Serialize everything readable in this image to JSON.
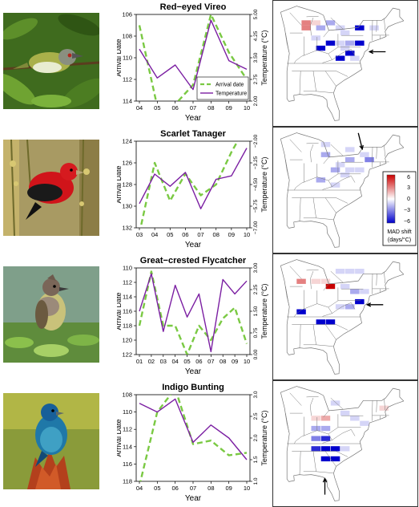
{
  "colors": {
    "arrival": "#7ac943",
    "temperature": "#7b1fa2",
    "shift_positive": "#d7191c",
    "shift_negative": "#0000cc",
    "map_line": "#777777"
  },
  "legend": {
    "arrival_label": "Arrival date",
    "temperature_label": "Temperature"
  },
  "color_scale": {
    "ticks": [
      "6",
      "3",
      "0",
      "−3",
      "−6"
    ],
    "label_line1": "MAD shift",
    "label_line2": "(days/°C)"
  },
  "chart_data": [
    {
      "type": "line",
      "title": "Red−eyed Vireo",
      "xlabel": "Year",
      "ylabel": "Arrival Date",
      "y2label": "Temperature (°C)",
      "x": [
        "04",
        "05",
        "06",
        "07",
        "08",
        "09",
        "10"
      ],
      "ylim": [
        106,
        114
      ],
      "y_reversed": true,
      "y_ticks": [
        "106",
        "108",
        "110",
        "112",
        "114"
      ],
      "y2lim": [
        2.0,
        5.0
      ],
      "y2_ticks": [
        "2.00",
        "2.75",
        "3.50",
        "4.25",
        "5.00"
      ],
      "legend_placement": "bottom-right",
      "series": [
        {
          "name": "Arrival date",
          "axis": "left",
          "style": "dashed",
          "values": [
            107.0,
            114.5,
            114.3,
            112.5,
            106.0,
            109.5,
            112.0
          ]
        },
        {
          "name": "Temperature",
          "axis": "right",
          "style": "solid",
          "values": [
            3.8,
            2.8,
            3.25,
            2.4,
            4.8,
            3.4,
            3.1
          ]
        }
      ],
      "map_cells": [
        {
          "lon": -88,
          "lat": 44,
          "shift": 3
        },
        {
          "lon": -88,
          "lat": 43,
          "shift": 3
        },
        {
          "lon": -86,
          "lat": 44,
          "shift": 1
        },
        {
          "lon": -85,
          "lat": 43,
          "shift": -2
        },
        {
          "lon": -83,
          "lat": 44,
          "shift": -2
        },
        {
          "lon": -81,
          "lat": 43,
          "shift": -1
        },
        {
          "lon": -80,
          "lat": 42,
          "shift": -1
        },
        {
          "lon": -77,
          "lat": 43,
          "shift": -6
        },
        {
          "lon": -74,
          "lat": 43,
          "shift": -1
        },
        {
          "lon": -86,
          "lat": 41,
          "shift": -1
        },
        {
          "lon": -83,
          "lat": 40,
          "shift": -6
        },
        {
          "lon": -81,
          "lat": 40,
          "shift": -1
        },
        {
          "lon": -79,
          "lat": 40,
          "shift": -2
        },
        {
          "lon": -77,
          "lat": 40,
          "shift": -6
        },
        {
          "lon": -85,
          "lat": 39,
          "shift": -6
        },
        {
          "lon": -80,
          "lat": 39,
          "shift": -1
        },
        {
          "lon": -79,
          "lat": 38,
          "shift": -6
        },
        {
          "lon": -78,
          "lat": 37,
          "shift": -1
        },
        {
          "lon": -81,
          "lat": 37,
          "shift": -6
        }
      ],
      "arrow": {
        "lon": -74,
        "lat": 38.8,
        "direction": "left"
      }
    },
    {
      "type": "line",
      "title": "Scarlet Tanager",
      "xlabel": "Year",
      "ylabel": "Arrival Date",
      "y2label": "Temperature (°C)",
      "x": [
        "03",
        "04",
        "05",
        "06",
        "07",
        "08",
        "09",
        "10"
      ],
      "ylim": [
        124,
        132
      ],
      "y_reversed": true,
      "y_ticks": [
        "124",
        "126",
        "128",
        "130",
        "132"
      ],
      "y2lim": [
        -7.0,
        -2.0
      ],
      "y2_ticks": [
        "−7.00",
        "−5.75",
        "−4.50",
        "−3.25",
        "−2.00"
      ],
      "legend_placement": "none",
      "series": [
        {
          "name": "Arrival date",
          "axis": "left",
          "style": "dashed",
          "values": [
            132.5,
            126.0,
            129.5,
            127.0,
            129.0,
            128.0,
            125.0,
            122.5
          ]
        },
        {
          "name": "Temperature",
          "axis": "right",
          "style": "solid",
          "values": [
            -5.6,
            -3.9,
            -4.6,
            -3.8,
            -5.9,
            -4.2,
            -4.0,
            -2.4
          ]
        }
      ],
      "map_cells": [
        {
          "lon": -84,
          "lat": 45,
          "shift": -1
        },
        {
          "lon": -84,
          "lat": 43,
          "shift": -2
        },
        {
          "lon": -79,
          "lat": 44,
          "shift": -1
        },
        {
          "lon": -76,
          "lat": 43,
          "shift": -1
        },
        {
          "lon": -75,
          "lat": 42,
          "shift": -3
        },
        {
          "lon": -79,
          "lat": 42,
          "shift": -2
        },
        {
          "lon": -81,
          "lat": 41,
          "shift": -1
        },
        {
          "lon": -82,
          "lat": 40,
          "shift": -2
        },
        {
          "lon": -79,
          "lat": 40,
          "shift": -1
        },
        {
          "lon": -77,
          "lat": 40,
          "shift": -1
        },
        {
          "lon": -80,
          "lat": 39,
          "shift": -1
        },
        {
          "lon": -85,
          "lat": 38,
          "shift": -2
        },
        {
          "lon": -82,
          "lat": 37,
          "shift": -1
        }
      ],
      "arrow": {
        "lon": -75.5,
        "lat": 44.6,
        "direction": "down"
      }
    },
    {
      "type": "line",
      "title": "Great−crested Flycatcher",
      "xlabel": "Year",
      "ylabel": "Arrival Date",
      "y2label": "Temperature (°C)",
      "x": [
        "01",
        "02",
        "03",
        "04",
        "05",
        "06",
        "07",
        "08",
        "09",
        "10"
      ],
      "ylim": [
        110,
        122
      ],
      "y_reversed": true,
      "y_ticks": [
        "110",
        "112",
        "114",
        "116",
        "118",
        "120",
        "122"
      ],
      "y2lim": [
        0.0,
        3.0
      ],
      "y2_ticks": [
        "0.00",
        "0.75",
        "1.50",
        "2.25",
        "3.00"
      ],
      "legend_placement": "none",
      "series": [
        {
          "name": "Arrival date",
          "axis": "left",
          "style": "dashed",
          "values": [
            118.0,
            110.5,
            118.0,
            118.0,
            122.0,
            118.0,
            120.0,
            117.0,
            115.5,
            120.5
          ]
        },
        {
          "name": "Temperature",
          "axis": "right",
          "style": "solid",
          "values": [
            1.5,
            2.8,
            0.8,
            2.4,
            1.3,
            2.1,
            0.1,
            2.6,
            2.1,
            2.55
          ]
        }
      ],
      "map_cells": [
        {
          "lon": -81,
          "lat": 45,
          "shift": -1
        },
        {
          "lon": -79,
          "lat": 45,
          "shift": -1
        },
        {
          "lon": -77,
          "lat": 45,
          "shift": -1
        },
        {
          "lon": -89,
          "lat": 43,
          "shift": 3
        },
        {
          "lon": -86,
          "lat": 43,
          "shift": 1
        },
        {
          "lon": -84,
          "lat": 43,
          "shift": 1
        },
        {
          "lon": -83,
          "lat": 42,
          "shift": 6
        },
        {
          "lon": -80,
          "lat": 42,
          "shift": -1
        },
        {
          "lon": -78,
          "lat": 41,
          "shift": -2
        },
        {
          "lon": -76,
          "lat": 41,
          "shift": -1
        },
        {
          "lon": -77,
          "lat": 39,
          "shift": -6
        },
        {
          "lon": -79,
          "lat": 38,
          "shift": -2
        },
        {
          "lon": -81,
          "lat": 38,
          "shift": -1
        },
        {
          "lon": -89,
          "lat": 37,
          "shift": -6
        },
        {
          "lon": -85,
          "lat": 35,
          "shift": -6
        },
        {
          "lon": -83,
          "lat": 35,
          "shift": -6
        }
      ],
      "arrow": {
        "lon": -74.5,
        "lat": 38.9,
        "direction": "left"
      }
    },
    {
      "type": "line",
      "title": "Indigo Bunting",
      "xlabel": "Year",
      "ylabel": "Arrival Date",
      "y2label": "Temperature (°C)",
      "x": [
        "04",
        "05",
        "06",
        "07",
        "08",
        "09",
        "10"
      ],
      "ylim": [
        108,
        118
      ],
      "y_reversed": true,
      "y_ticks": [
        "108",
        "110",
        "112",
        "114",
        "116",
        "118"
      ],
      "y2lim": [
        1.0,
        3.0
      ],
      "y2_ticks": [
        "1.0",
        "1.5",
        "2.0",
        "2.5",
        "3.0"
      ],
      "legend_placement": "none",
      "series": [
        {
          "name": "Arrival date",
          "axis": "left",
          "style": "dashed",
          "values": [
            118.5,
            110.0,
            107.3,
            113.7,
            113.3,
            115.0,
            114.7
          ]
        },
        {
          "name": "Temperature",
          "axis": "right",
          "style": "solid",
          "values": [
            2.8,
            2.6,
            2.9,
            1.9,
            2.3,
            2.0,
            1.5
          ]
        }
      ],
      "map_cells": [
        {
          "lon": -82,
          "lat": 44,
          "shift": -1
        },
        {
          "lon": -72,
          "lat": 43,
          "shift": 1
        },
        {
          "lon": -80,
          "lat": 42,
          "shift": -1
        },
        {
          "lon": -86,
          "lat": 41,
          "shift": 1
        },
        {
          "lon": -84,
          "lat": 41,
          "shift": 2
        },
        {
          "lon": -78,
          "lat": 41,
          "shift": -1
        },
        {
          "lon": -76,
          "lat": 40,
          "shift": -1
        },
        {
          "lon": -86,
          "lat": 39,
          "shift": -2
        },
        {
          "lon": -84,
          "lat": 39,
          "shift": -2
        },
        {
          "lon": -86,
          "lat": 37,
          "shift": -3
        },
        {
          "lon": -84,
          "lat": 37,
          "shift": -5
        },
        {
          "lon": -86,
          "lat": 35,
          "shift": -5
        },
        {
          "lon": -84,
          "lat": 35,
          "shift": -6
        },
        {
          "lon": -82,
          "lat": 35,
          "shift": -6
        },
        {
          "lon": -84,
          "lat": 33,
          "shift": -6
        },
        {
          "lon": -82,
          "lat": 33,
          "shift": -6
        },
        {
          "lon": -80,
          "lat": 35,
          "shift": -1
        }
      ],
      "arrow": {
        "lon": -83.2,
        "lat": 29.6,
        "direction": "up"
      }
    }
  ]
}
